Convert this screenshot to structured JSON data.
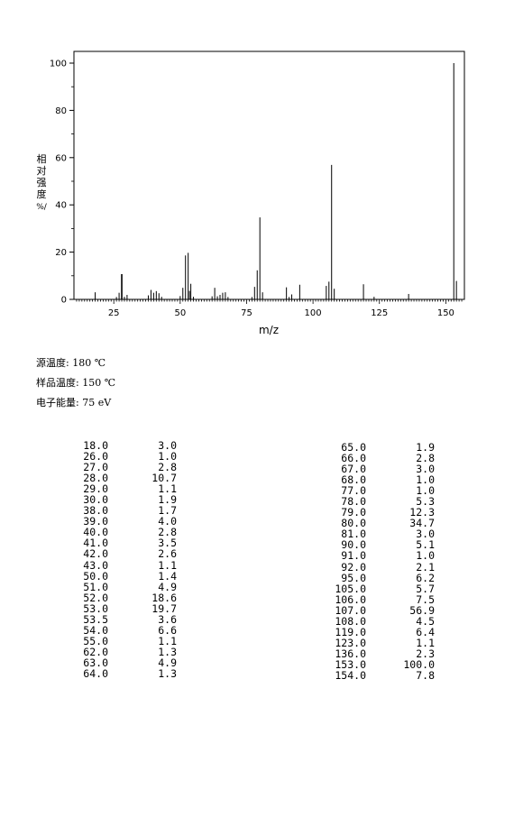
{
  "chart_data": {
    "type": "bar",
    "xlabel": "m/z",
    "ylabel": "相对强度/%",
    "ylabel_chars": [
      "相",
      "对",
      "强",
      "度",
      "%/"
    ],
    "xlim": [
      10,
      157
    ],
    "ylim": [
      0,
      105
    ],
    "x_ticks": [
      "25",
      "50",
      "75",
      "100",
      "125",
      "150"
    ],
    "x_tick_values": [
      25,
      50,
      75,
      100,
      125,
      150
    ],
    "y_ticks": [
      "0",
      "20",
      "40",
      "60",
      "80",
      "100"
    ],
    "y_tick_values": [
      0,
      20,
      40,
      60,
      80,
      100
    ],
    "grid": false,
    "peaks": [
      {
        "x": 18.0,
        "y": 3.0
      },
      {
        "x": 26.0,
        "y": 1.0
      },
      {
        "x": 27.0,
        "y": 2.8
      },
      {
        "x": 28.0,
        "y": 10.7
      },
      {
        "x": 29.0,
        "y": 1.1
      },
      {
        "x": 30.0,
        "y": 1.9
      },
      {
        "x": 38.0,
        "y": 1.7
      },
      {
        "x": 39.0,
        "y": 4.0
      },
      {
        "x": 40.0,
        "y": 2.8
      },
      {
        "x": 41.0,
        "y": 3.5
      },
      {
        "x": 42.0,
        "y": 2.6
      },
      {
        "x": 43.0,
        "y": 1.1
      },
      {
        "x": 50.0,
        "y": 1.4
      },
      {
        "x": 51.0,
        "y": 4.9
      },
      {
        "x": 52.0,
        "y": 18.6
      },
      {
        "x": 53.0,
        "y": 19.7
      },
      {
        "x": 53.5,
        "y": 3.6
      },
      {
        "x": 54.0,
        "y": 6.6
      },
      {
        "x": 55.0,
        "y": 1.1
      },
      {
        "x": 62.0,
        "y": 1.3
      },
      {
        "x": 63.0,
        "y": 4.9
      },
      {
        "x": 64.0,
        "y": 1.3
      },
      {
        "x": 65.0,
        "y": 1.9
      },
      {
        "x": 66.0,
        "y": 2.8
      },
      {
        "x": 67.0,
        "y": 3.0
      },
      {
        "x": 68.0,
        "y": 1.0
      },
      {
        "x": 77.0,
        "y": 1.0
      },
      {
        "x": 78.0,
        "y": 5.3
      },
      {
        "x": 79.0,
        "y": 12.3
      },
      {
        "x": 80.0,
        "y": 34.7
      },
      {
        "x": 81.0,
        "y": 3.0
      },
      {
        "x": 90.0,
        "y": 5.1
      },
      {
        "x": 91.0,
        "y": 1.0
      },
      {
        "x": 92.0,
        "y": 2.1
      },
      {
        "x": 95.0,
        "y": 6.2
      },
      {
        "x": 105.0,
        "y": 5.7
      },
      {
        "x": 106.0,
        "y": 7.5
      },
      {
        "x": 107.0,
        "y": 56.9
      },
      {
        "x": 108.0,
        "y": 4.5
      },
      {
        "x": 119.0,
        "y": 6.4
      },
      {
        "x": 123.0,
        "y": 1.1
      },
      {
        "x": 136.0,
        "y": 2.3
      },
      {
        "x": 153.0,
        "y": 100.0
      },
      {
        "x": 154.0,
        "y": 7.8
      }
    ]
  },
  "conditions": [
    "源温度: 180 ℃",
    "样品温度: 150 ℃",
    "电子能量: 75 eV"
  ],
  "table_left": [
    [
      "18.0",
      "3.0"
    ],
    [
      "26.0",
      "1.0"
    ],
    [
      "27.0",
      "2.8"
    ],
    [
      "28.0",
      "10.7"
    ],
    [
      "29.0",
      "1.1"
    ],
    [
      "30.0",
      "1.9"
    ],
    [
      "38.0",
      "1.7"
    ],
    [
      "39.0",
      "4.0"
    ],
    [
      "40.0",
      "2.8"
    ],
    [
      "41.0",
      "3.5"
    ],
    [
      "42.0",
      "2.6"
    ],
    [
      "43.0",
      "1.1"
    ],
    [
      "50.0",
      "1.4"
    ],
    [
      "51.0",
      "4.9"
    ],
    [
      "52.0",
      "18.6"
    ],
    [
      "53.0",
      "19.7"
    ],
    [
      "53.5",
      "3.6"
    ],
    [
      "54.0",
      "6.6"
    ],
    [
      "55.0",
      "1.1"
    ],
    [
      "62.0",
      "1.3"
    ],
    [
      "63.0",
      "4.9"
    ],
    [
      "64.0",
      "1.3"
    ]
  ],
  "table_right": [
    [
      "65.0",
      "1.9"
    ],
    [
      "66.0",
      "2.8"
    ],
    [
      "67.0",
      "3.0"
    ],
    [
      "68.0",
      "1.0"
    ],
    [
      "77.0",
      "1.0"
    ],
    [
      "78.0",
      "5.3"
    ],
    [
      "79.0",
      "12.3"
    ],
    [
      "80.0",
      "34.7"
    ],
    [
      "81.0",
      "3.0"
    ],
    [
      "90.0",
      "5.1"
    ],
    [
      "91.0",
      "1.0"
    ],
    [
      "92.0",
      "2.1"
    ],
    [
      "95.0",
      "6.2"
    ],
    [
      "105.0",
      "5.7"
    ],
    [
      "106.0",
      "7.5"
    ],
    [
      "107.0",
      "56.9"
    ],
    [
      "108.0",
      "4.5"
    ],
    [
      "119.0",
      "6.4"
    ],
    [
      "123.0",
      "1.1"
    ],
    [
      "136.0",
      "2.3"
    ],
    [
      "153.0",
      "100.0"
    ],
    [
      "154.0",
      "7.8"
    ]
  ]
}
